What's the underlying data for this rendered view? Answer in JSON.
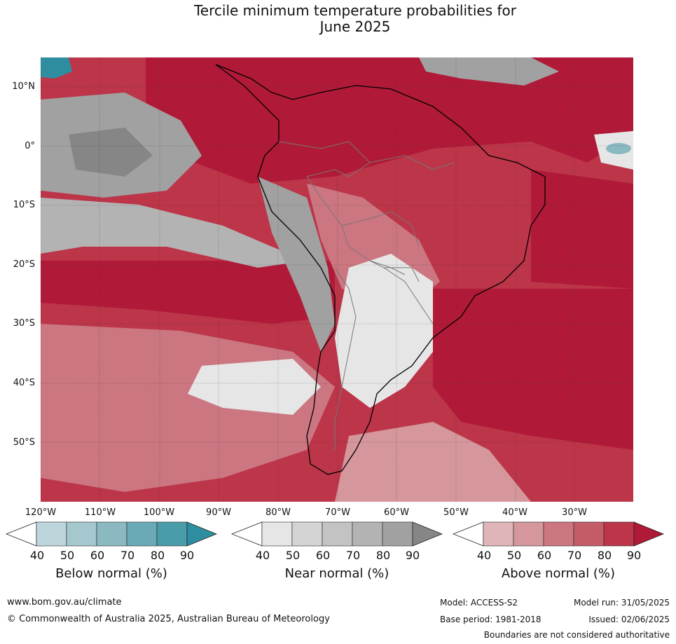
{
  "title_line1": "Tercile minimum temperature probabilities for",
  "title_line2": "June 2025",
  "lat_labels": [
    "10°N",
    "0°",
    "10°S",
    "20°S",
    "30°S",
    "40°S",
    "50°S"
  ],
  "lon_labels": [
    "120°W",
    "110°W",
    "100°W",
    "90°W",
    "80°W",
    "70°W",
    "60°W",
    "50°W",
    "40°W",
    "30°W"
  ],
  "colorbars": [
    {
      "title": "Below normal (%)",
      "ticks": [
        "40",
        "50",
        "60",
        "70",
        "80",
        "90"
      ],
      "colors": [
        "#ffffff",
        "#bcd6dc",
        "#a5c8ce",
        "#8ab9c2",
        "#6aa9b6",
        "#4b9caa",
        "#2e8e9f"
      ]
    },
    {
      "title": "Near normal (%)",
      "ticks": [
        "40",
        "50",
        "60",
        "70",
        "80",
        "90"
      ],
      "colors": [
        "#ffffff",
        "#e6e6e6",
        "#d4d4d4",
        "#c3c3c3",
        "#b3b3b3",
        "#a1a1a1",
        "#868686"
      ]
    },
    {
      "title": "Above normal (%)",
      "ticks": [
        "40",
        "50",
        "60",
        "70",
        "80",
        "90"
      ],
      "colors": [
        "#ffffff",
        "#e0b5b9",
        "#d5969c",
        "#cb7680",
        "#c45c68",
        "#bc3549",
        "#b01a38"
      ]
    }
  ],
  "footer": {
    "url": "www.bom.gov.au/climate",
    "copyright": "© Commonwealth of Australia 2025, Australian Bureau of Meteorology",
    "model": "Model: ACCESS-S2",
    "model_run": "Model run: 31/05/2025",
    "base_period": "Base period: 1981-2018",
    "issued": "Issued: 02/06/2025",
    "disclaimer": "Boundaries are not considered authoritative"
  }
}
